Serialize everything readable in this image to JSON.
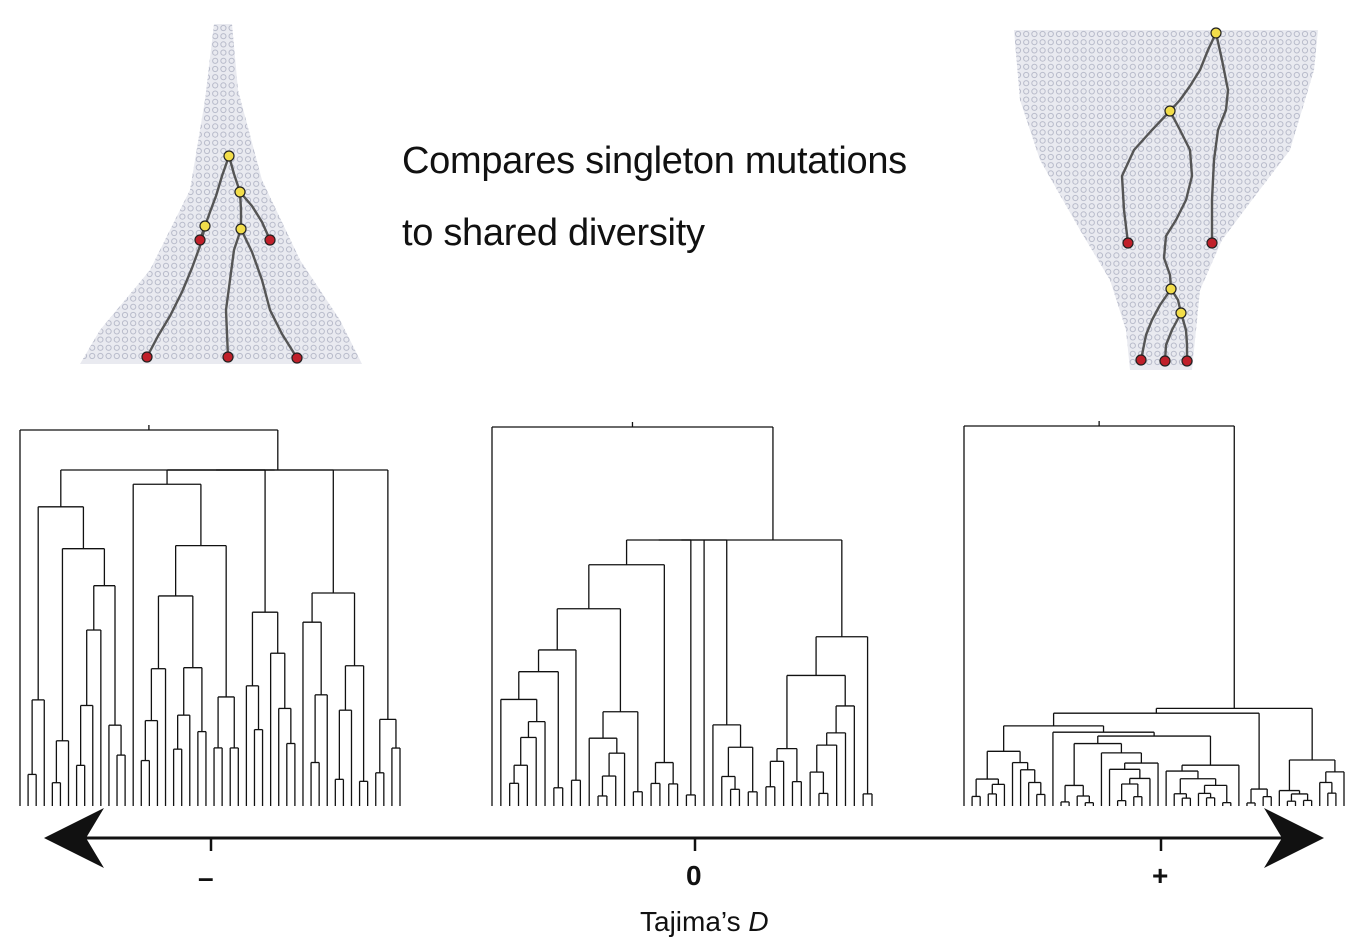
{
  "caption": {
    "line1": "Compares singleton mutations",
    "line2": "to shared diversity"
  },
  "axis": {
    "ticks": [
      "–",
      "0",
      "+"
    ],
    "title_prefix": "Tajima’s",
    "title_variable": "D"
  },
  "colors": {
    "node_ancestor": "#f2dd4a",
    "node_sample": "#c0202a",
    "lineage": "#555555",
    "grid_dot": "#b9bccb",
    "population_fill": "#e9eaf0",
    "tree": "#111111"
  }
}
